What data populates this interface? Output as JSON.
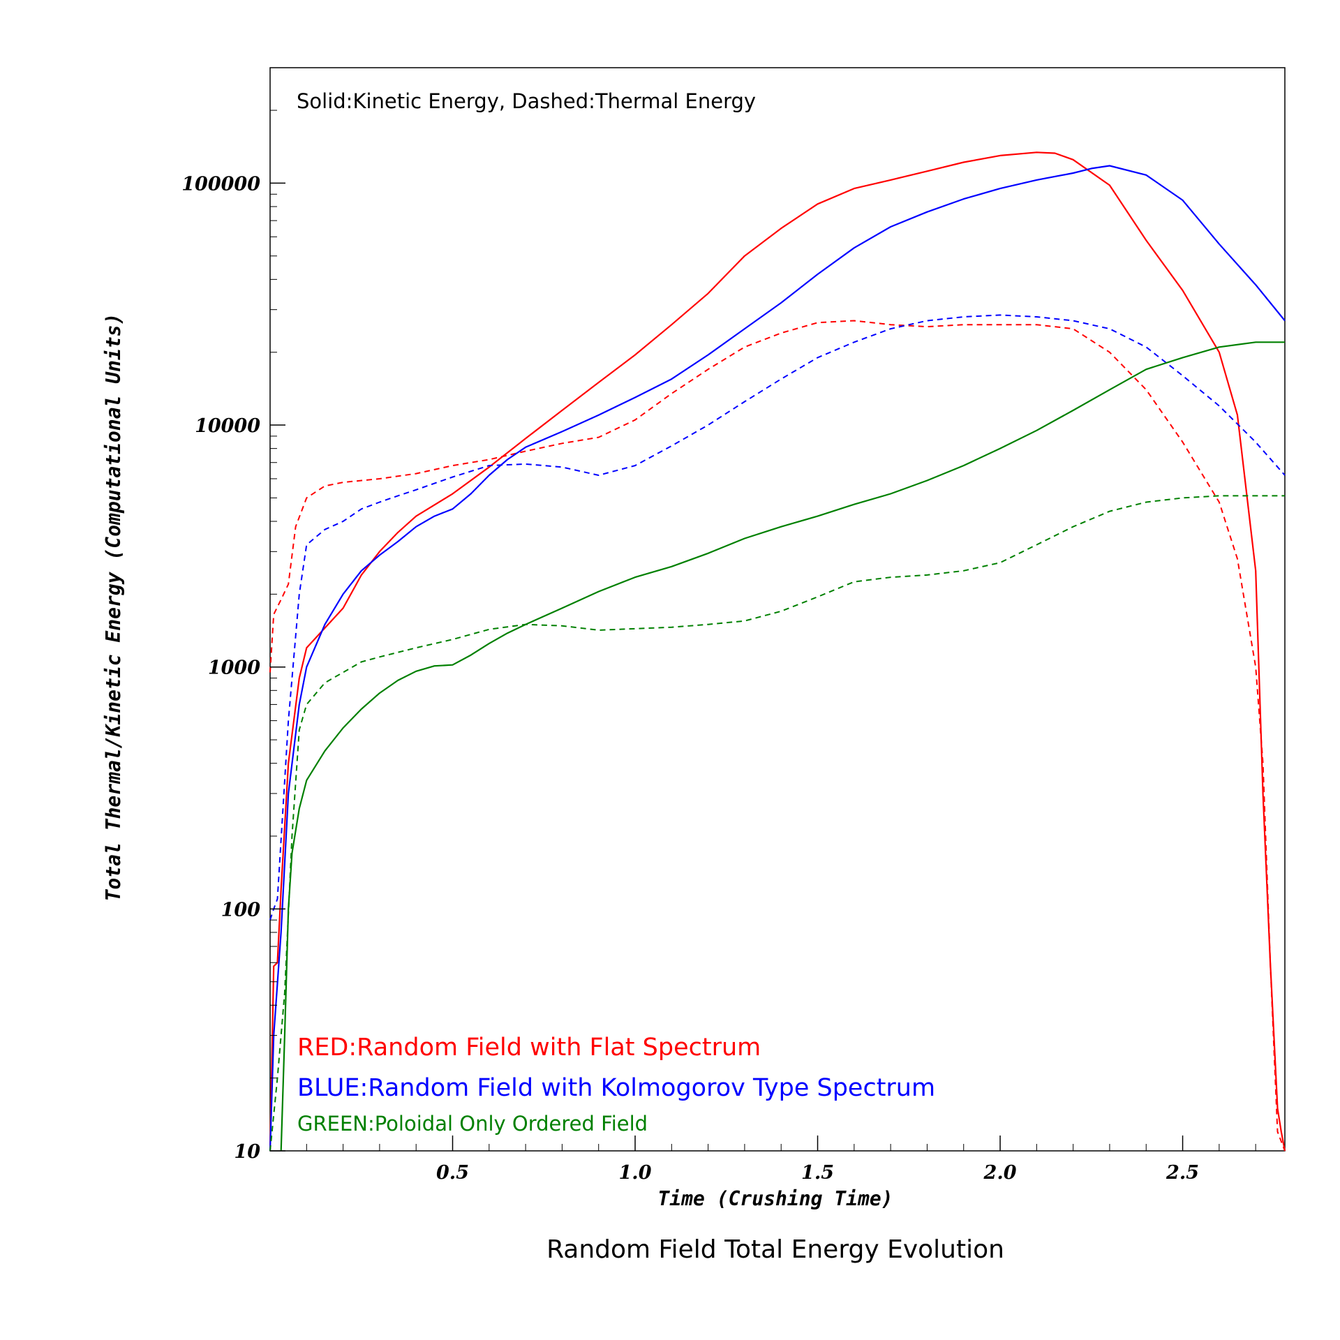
{
  "chart_data": {
    "type": "line",
    "title": "Random Field Total Energy Evolution",
    "xlabel": "Time (Crushing Time)",
    "ylabel": "Total Thermal/Kinetic Energy (Computational Units)",
    "xlim": [
      0.0,
      2.78
    ],
    "ylim": [
      10,
      300000
    ],
    "yscale": "log",
    "grid": false,
    "xticks": [
      0.5,
      1.0,
      1.5,
      2.0,
      2.5
    ],
    "xtick_labels": [
      "0.5",
      "1.0",
      "1.5",
      "2.0",
      "2.5"
    ],
    "yticks": [
      10,
      100,
      1000,
      10000,
      100000
    ],
    "ytick_labels": [
      "10",
      "100",
      "1000",
      "10000",
      "100000"
    ],
    "annotations": {
      "style_note": "Solid:Kinetic Energy,  Dashed:Thermal Energy",
      "legend_red": "RED:Random Field with Flat Spectrum",
      "legend_blue": "BLUE:Random Field with Kolmogorov Type Spectrum",
      "legend_green": "GREEN:Poloidal Only Ordered Field"
    },
    "colors": {
      "red": "#ff0000",
      "blue": "#0000ff",
      "green": "#008000"
    },
    "series": [
      {
        "color": "red",
        "style": "solid",
        "x": [
          0.0,
          0.01,
          0.02,
          0.03,
          0.05,
          0.08,
          0.1,
          0.15,
          0.2,
          0.25,
          0.3,
          0.35,
          0.4,
          0.5,
          0.6,
          0.7,
          0.8,
          0.9,
          1.0,
          1.1,
          1.2,
          1.3,
          1.4,
          1.5,
          1.6,
          1.7,
          1.8,
          1.9,
          2.0,
          2.1,
          2.15,
          2.2,
          2.3,
          2.4,
          2.5,
          2.6,
          2.65,
          2.7,
          2.72,
          2.74,
          2.76,
          2.77,
          2.78
        ],
        "y": [
          10,
          58,
          60,
          120,
          400,
          900,
          1200,
          1450,
          1750,
          2400,
          3000,
          3600,
          4200,
          5200,
          6700,
          8800,
          11500,
          15000,
          19500,
          26000,
          35000,
          50000,
          65000,
          82000,
          95000,
          103000,
          112000,
          122000,
          130000,
          134000,
          133000,
          125000,
          98000,
          58000,
          36000,
          20000,
          11000,
          2500,
          300,
          60,
          15,
          12,
          10
        ]
      },
      {
        "color": "red",
        "style": "dashed",
        "x": [
          0.0,
          0.01,
          0.03,
          0.05,
          0.07,
          0.1,
          0.15,
          0.2,
          0.3,
          0.4,
          0.5,
          0.6,
          0.7,
          0.8,
          0.9,
          1.0,
          1.1,
          1.2,
          1.3,
          1.4,
          1.5,
          1.6,
          1.7,
          1.8,
          1.9,
          2.0,
          2.1,
          2.2,
          2.3,
          2.4,
          2.5,
          2.6,
          2.65,
          2.7,
          2.72,
          2.74,
          2.76,
          2.78
        ],
        "y": [
          950,
          1650,
          1900,
          2200,
          3800,
          5000,
          5600,
          5800,
          6000,
          6300,
          6800,
          7200,
          7800,
          8400,
          8900,
          10500,
          13500,
          17000,
          21000,
          24000,
          26500,
          27000,
          26000,
          25500,
          26000,
          26000,
          26000,
          25000,
          20000,
          14000,
          8500,
          4800,
          2800,
          1000,
          400,
          60,
          12,
          10
        ]
      },
      {
        "color": "blue",
        "style": "solid",
        "x": [
          0.0,
          0.01,
          0.03,
          0.05,
          0.08,
          0.1,
          0.15,
          0.2,
          0.25,
          0.3,
          0.35,
          0.4,
          0.45,
          0.5,
          0.55,
          0.6,
          0.65,
          0.7,
          0.8,
          0.9,
          1.0,
          1.1,
          1.2,
          1.3,
          1.4,
          1.5,
          1.6,
          1.7,
          1.8,
          1.9,
          2.0,
          2.1,
          2.2,
          2.25,
          2.3,
          2.4,
          2.5,
          2.6,
          2.7,
          2.78
        ],
        "y": [
          10,
          30,
          80,
          300,
          700,
          1000,
          1500,
          2000,
          2500,
          2900,
          3300,
          3800,
          4200,
          4500,
          5200,
          6200,
          7200,
          8100,
          9400,
          11000,
          13000,
          15500,
          19500,
          25000,
          32000,
          42000,
          54000,
          66000,
          76000,
          86000,
          95000,
          103000,
          110000,
          115000,
          118000,
          108000,
          85000,
          56000,
          38000,
          27000
        ]
      },
      {
        "color": "blue",
        "style": "dashed",
        "x": [
          0.0,
          0.01,
          0.02,
          0.05,
          0.08,
          0.1,
          0.15,
          0.2,
          0.25,
          0.3,
          0.35,
          0.4,
          0.5,
          0.6,
          0.7,
          0.8,
          0.9,
          1.0,
          1.1,
          1.2,
          1.3,
          1.4,
          1.5,
          1.6,
          1.7,
          1.8,
          1.9,
          2.0,
          2.1,
          2.2,
          2.3,
          2.4,
          2.5,
          2.6,
          2.7,
          2.78
        ],
        "y": [
          90,
          100,
          110,
          600,
          2000,
          3200,
          3700,
          4000,
          4500,
          4800,
          5100,
          5400,
          6100,
          6800,
          6900,
          6700,
          6200,
          6800,
          8200,
          10000,
          12500,
          15500,
          19000,
          22000,
          25000,
          27000,
          28000,
          28500,
          28000,
          27000,
          25000,
          21000,
          16000,
          12000,
          8500,
          6200
        ]
      },
      {
        "color": "green",
        "style": "solid",
        "x": [
          0.03,
          0.04,
          0.05,
          0.06,
          0.08,
          0.1,
          0.15,
          0.2,
          0.25,
          0.3,
          0.35,
          0.4,
          0.45,
          0.5,
          0.55,
          0.6,
          0.65,
          0.7,
          0.8,
          0.9,
          1.0,
          1.1,
          1.2,
          1.3,
          1.4,
          1.5,
          1.6,
          1.7,
          1.8,
          1.9,
          2.0,
          2.1,
          2.2,
          2.3,
          2.4,
          2.5,
          2.6,
          2.7,
          2.78
        ],
        "y": [
          10,
          30,
          100,
          170,
          260,
          340,
          450,
          560,
          670,
          780,
          880,
          960,
          1010,
          1020,
          1120,
          1250,
          1380,
          1500,
          1750,
          2050,
          2350,
          2600,
          2950,
          3400,
          3800,
          4200,
          4700,
          5200,
          5900,
          6800,
          8000,
          9500,
          11500,
          14000,
          17000,
          19000,
          21000,
          22000,
          22000
        ]
      },
      {
        "color": "green",
        "style": "dashed",
        "x": [
          0.0,
          0.02,
          0.04,
          0.06,
          0.08,
          0.1,
          0.15,
          0.2,
          0.25,
          0.3,
          0.4,
          0.5,
          0.6,
          0.7,
          0.8,
          0.9,
          1.0,
          1.1,
          1.2,
          1.3,
          1.4,
          1.5,
          1.6,
          1.7,
          1.8,
          1.9,
          2.0,
          2.1,
          2.2,
          2.3,
          2.4,
          2.5,
          2.6,
          2.7,
          2.78
        ],
        "y": [
          10,
          20,
          45,
          200,
          550,
          700,
          860,
          950,
          1050,
          1100,
          1200,
          1300,
          1430,
          1500,
          1480,
          1420,
          1440,
          1460,
          1500,
          1550,
          1700,
          1950,
          2250,
          2350,
          2400,
          2500,
          2700,
          3200,
          3800,
          4400,
          4800,
          5000,
          5100,
          5100,
          5100
        ]
      }
    ]
  }
}
